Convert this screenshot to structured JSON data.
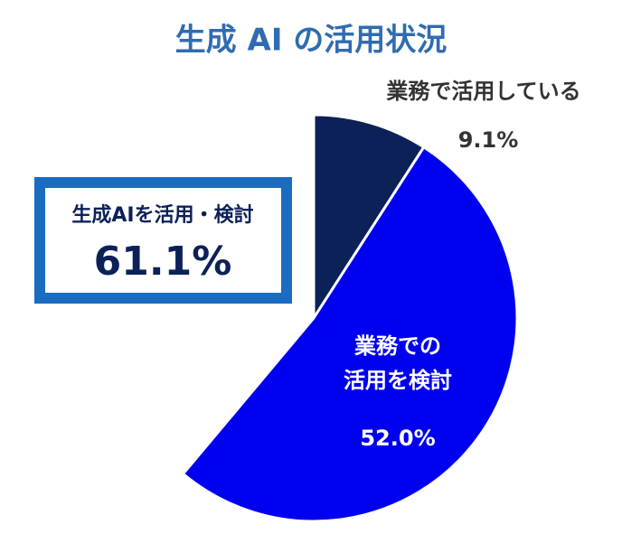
{
  "chart_data": {
    "type": "pie",
    "title": "生成 AI の活用状況",
    "categories": [
      "業務で活用している",
      "業務での\n活用を検討"
    ],
    "values": [
      9.1,
      52.0
    ],
    "value_labels": [
      "9.1%",
      "52.0%"
    ],
    "colors": [
      "#0b2157",
      "#0000f0"
    ],
    "annotation": {
      "label": "生成AIを活用・検討",
      "value": 61.1,
      "value_label": "61.1%"
    }
  }
}
